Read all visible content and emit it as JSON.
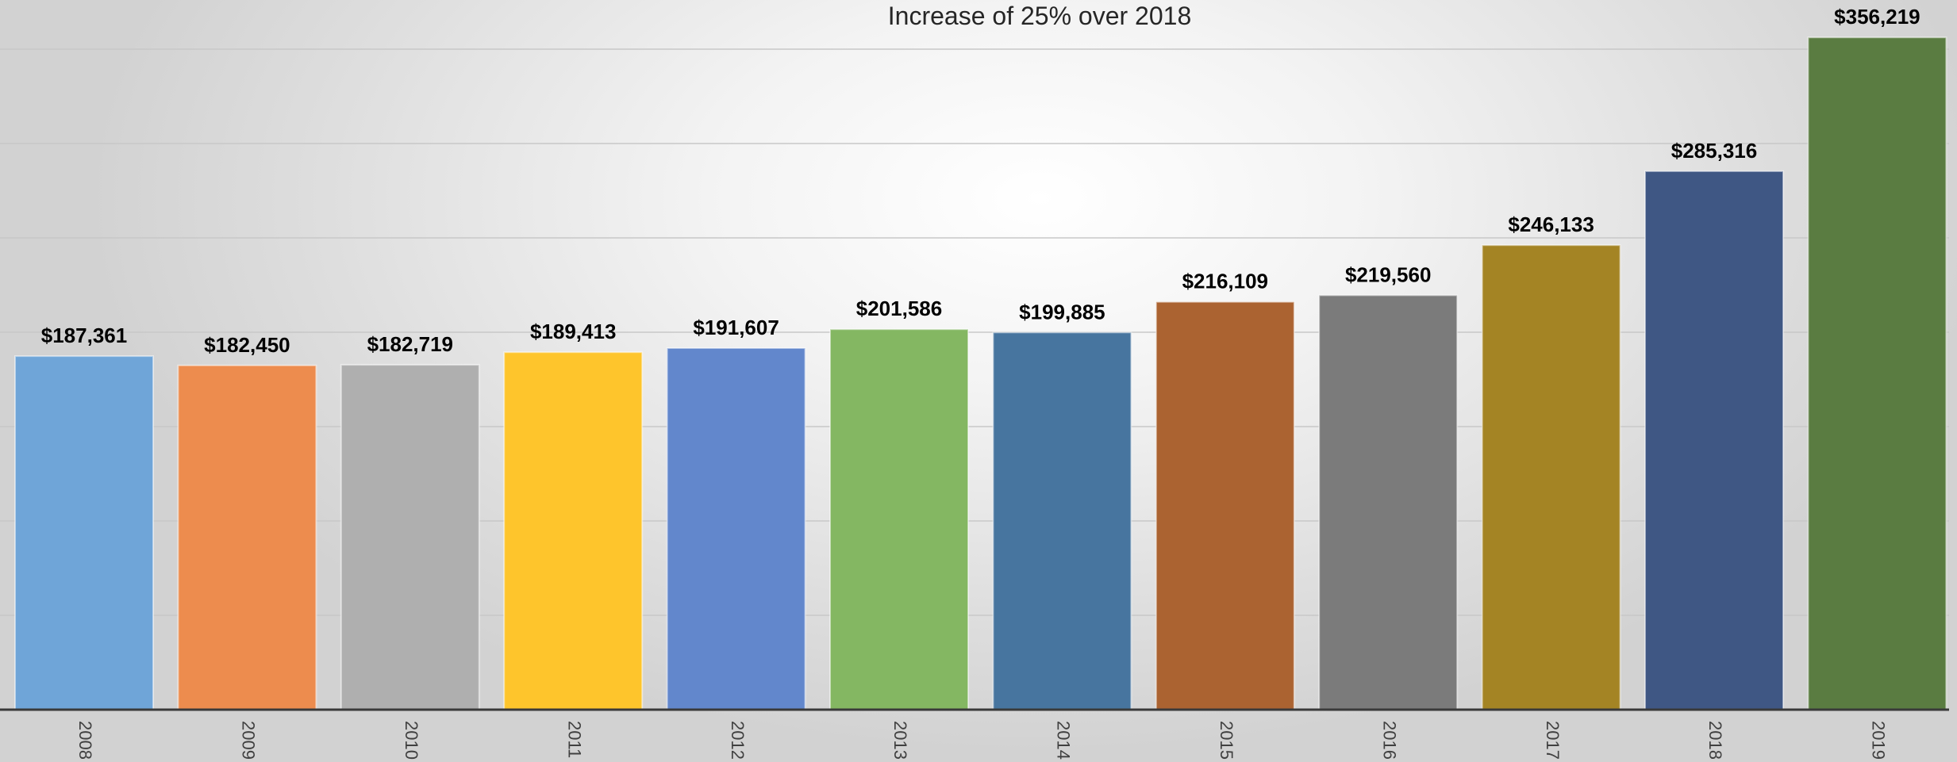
{
  "chart_data": {
    "type": "bar",
    "title": "Increase of 25% over 2018",
    "xlabel": "",
    "ylabel": "",
    "ylim": [
      0,
      360000
    ],
    "grid": true,
    "legend": "none",
    "categories": [
      "2008",
      "2009",
      "2010",
      "2011",
      "2012",
      "2013",
      "2014",
      "2015",
      "2016",
      "2017",
      "2018",
      "2019"
    ],
    "values": [
      187361,
      182450,
      182719,
      189413,
      191607,
      201586,
      199885,
      216109,
      219560,
      246133,
      285316,
      356219
    ],
    "value_labels": [
      "$187,361",
      "$182,450",
      "$182,719",
      "$189,413",
      "$191,607",
      "$201,586",
      "$199,885",
      "$216,109",
      "$219,560",
      "$246,133",
      "$285,316",
      "$356,219"
    ],
    "colors": [
      "#6fa5d8",
      "#ed8c4e",
      "#afafaf",
      "#fec52c",
      "#6287cc",
      "#84b762",
      "#47759f",
      "#ab6331",
      "#7b7b7b",
      "#a48424",
      "#3f5784",
      "#5a7c41"
    ]
  }
}
